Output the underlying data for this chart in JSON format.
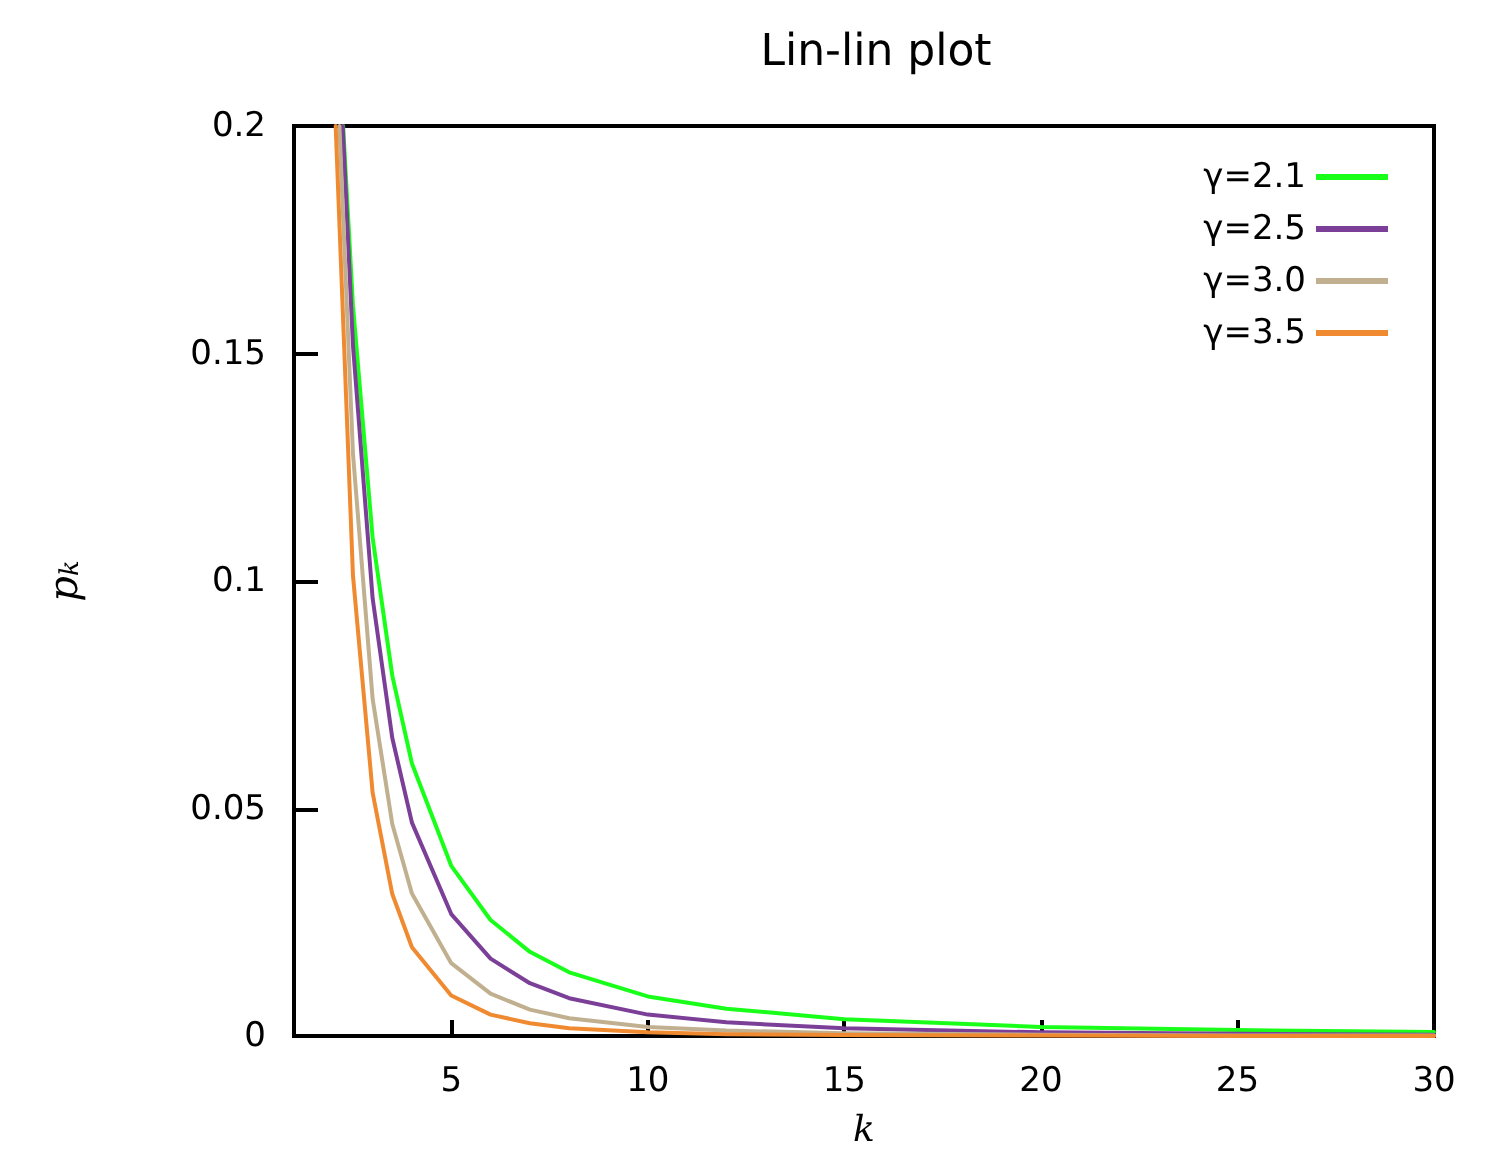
{
  "chart_data": {
    "type": "line",
    "title": "Lin-lin plot",
    "xlabel": "k",
    "ylabel": "p$_{k}$",
    "xlim": [
      1,
      30
    ],
    "xticks": [
      5,
      10,
      15,
      20,
      25,
      30
    ],
    "ylim": [
      0,
      0.2
    ],
    "yticks": [
      0,
      0.05,
      0.1,
      0.15,
      0.2
    ],
    "grid": false,
    "legend": "top right",
    "marker": "none",
    "line_style": "solid",
    "series": [
      {
        "name": "γ=2.1",
        "color": "#1aff1a",
        "x": [
          2.25,
          2.5,
          3,
          3.5,
          4,
          5,
          6,
          7,
          8,
          10,
          12,
          15,
          20,
          25,
          30
        ],
        "values": [
          0.2,
          0.1605,
          0.1095,
          0.0792,
          0.0599,
          0.0374,
          0.0255,
          0.0185,
          0.014,
          0.0087,
          0.006,
          0.0037,
          0.002,
          0.0013,
          0.0009
        ]
      },
      {
        "name": "γ=2.5",
        "color": "#7b3f98",
        "x": [
          2.24,
          2.5,
          3,
          3.5,
          4,
          5,
          6,
          7,
          8,
          10,
          12,
          15,
          20,
          25,
          30
        ],
        "values": [
          0.2,
          0.1518,
          0.0962,
          0.0655,
          0.0469,
          0.0268,
          0.017,
          0.0116,
          0.0083,
          0.0047,
          0.003,
          0.0017,
          0.0008,
          0.0005,
          0.0003
        ]
      },
      {
        "name": "γ=3.0",
        "color": "#c0b090",
        "x": [
          2.155,
          2.5,
          3,
          3.5,
          4,
          5,
          6,
          7,
          8,
          10,
          12,
          15,
          20,
          25,
          30
        ],
        "values": [
          0.2,
          0.128,
          0.0741,
          0.0466,
          0.0313,
          0.016,
          0.0093,
          0.0058,
          0.0039,
          0.002,
          0.0012,
          0.0006,
          0.0003,
          0.0001,
          0.0001
        ]
      },
      {
        "name": "γ=3.5",
        "color": "#f08a30",
        "x": [
          2.06,
          2.5,
          3,
          3.5,
          4,
          5,
          6,
          7,
          8,
          10,
          12,
          15,
          20,
          25,
          30
        ],
        "values": [
          0.2,
          0.1012,
          0.0535,
          0.0312,
          0.0195,
          0.0089,
          0.0047,
          0.0028,
          0.0017,
          0.0008,
          0.0004,
          0.0002,
          0.0001,
          0,
          0
        ]
      }
    ]
  }
}
